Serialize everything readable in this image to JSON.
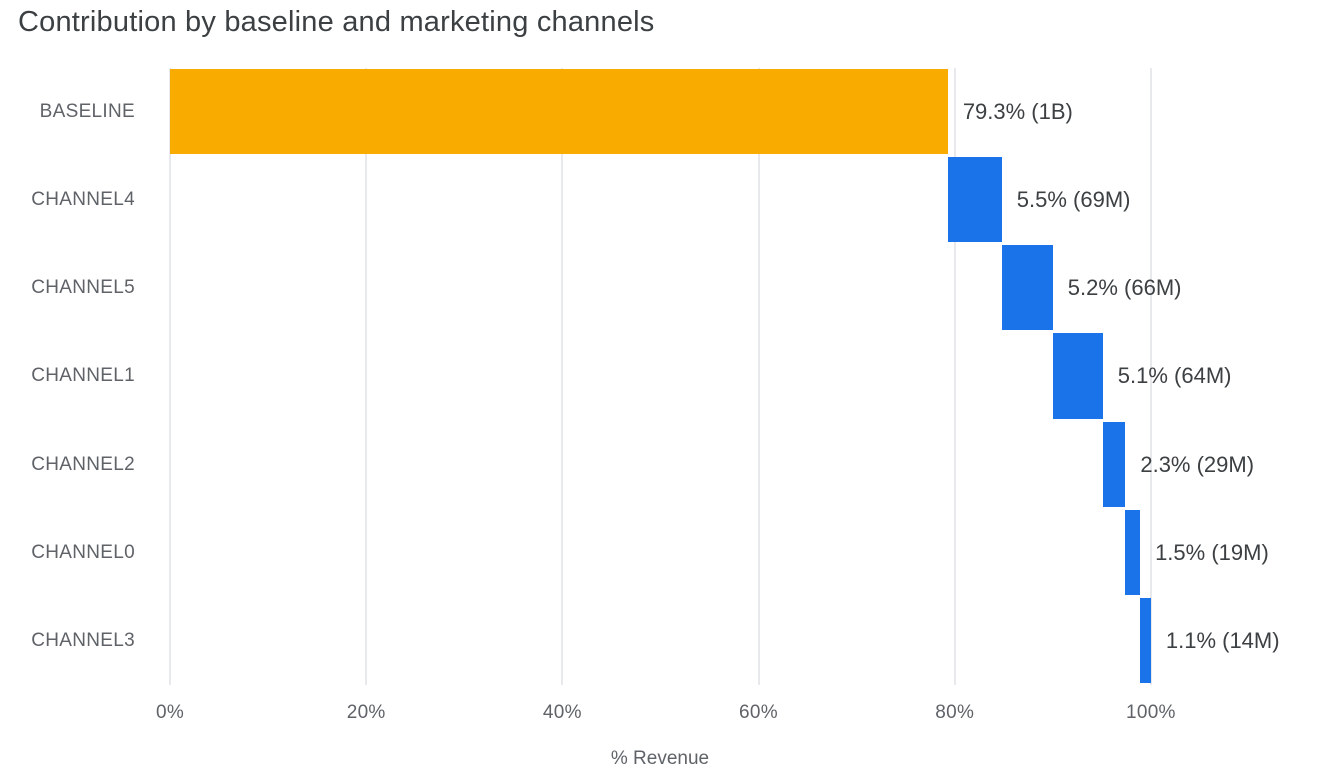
{
  "chart_data": {
    "type": "bar",
    "subtype": "waterfall",
    "orientation": "horizontal",
    "title": "Contribution by baseline and marketing channels",
    "xlabel": "% Revenue",
    "grid": true,
    "legend": false,
    "xlim": [
      0,
      104.5
    ],
    "x_tick_values": [
      0,
      20,
      40,
      60,
      80,
      100
    ],
    "x_ticks": [
      "0%",
      "20%",
      "40%",
      "60%",
      "80%",
      "100%"
    ],
    "colors": {
      "baseline_bar": "#F9AB00",
      "channel_bar": "#1A73E8",
      "gridline": "#E7E9EC",
      "title_text": "#3C4043",
      "axis_text": "#5F6368",
      "value_text": "#3C4043"
    },
    "categories": [
      "BASELINE",
      "CHANNEL4",
      "CHANNEL5",
      "CHANNEL1",
      "CHANNEL2",
      "CHANNEL0",
      "CHANNEL3"
    ],
    "bars": [
      {
        "label": "BASELINE",
        "start": 0.0,
        "value": 79.3,
        "end": 79.3,
        "display": "79.3% (1B)",
        "color": "#F9AB00"
      },
      {
        "label": "CHANNEL4",
        "start": 79.3,
        "value": 5.5,
        "end": 84.8,
        "display": "5.5% (69M)",
        "color": "#1A73E8"
      },
      {
        "label": "CHANNEL5",
        "start": 84.8,
        "value": 5.2,
        "end": 90.0,
        "display": "5.2% (66M)",
        "color": "#1A73E8"
      },
      {
        "label": "CHANNEL1",
        "start": 90.0,
        "value": 5.1,
        "end": 95.1,
        "display": "5.1% (64M)",
        "color": "#1A73E8"
      },
      {
        "label": "CHANNEL2",
        "start": 95.1,
        "value": 2.3,
        "end": 97.4,
        "display": "2.3% (29M)",
        "color": "#1A73E8"
      },
      {
        "label": "CHANNEL0",
        "start": 97.4,
        "value": 1.5,
        "end": 98.9,
        "display": "1.5% (19M)",
        "color": "#1A73E8"
      },
      {
        "label": "CHANNEL3",
        "start": 98.9,
        "value": 1.1,
        "end": 100.0,
        "display": "1.1% (14M)",
        "color": "#1A73E8"
      }
    ]
  }
}
